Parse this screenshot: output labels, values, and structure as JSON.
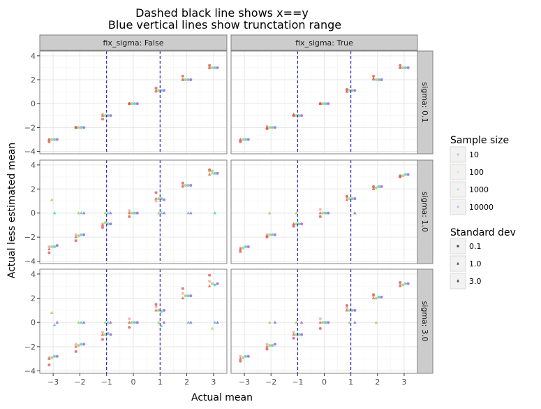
{
  "chart_data": {
    "type": "scatter",
    "title_lines": [
      "Dashed black line shows x==y",
      "Blue vertical lines show trunctation range"
    ],
    "xlabel": "Actual mean",
    "ylabel": "Actual less estimated mean",
    "xlim": [
      -3.5,
      3.5
    ],
    "ylim": [
      -4.2,
      4.4
    ],
    "x_ticks": [
      -3,
      -2,
      -1,
      0,
      1,
      2,
      3
    ],
    "x_tick_labels": [
      "−3",
      "−2",
      "−1",
      "0",
      "1",
      "2",
      "3"
    ],
    "y_ticks": [
      -4,
      -2,
      0,
      2,
      4
    ],
    "y_tick_labels": [
      "−4",
      "−2",
      "0",
      "2",
      "4"
    ],
    "grid": true,
    "truncation_lines": {
      "x": [
        -1,
        1
      ],
      "color": "#0000cc",
      "style": "dashed"
    },
    "facet_cols": [
      "fix_sigma: False",
      "fix_sigma: True"
    ],
    "facet_rows": [
      "sigma: 0.1",
      "sigma: 1.0",
      "sigma: 3.0"
    ],
    "actual_means": [
      -3,
      -2,
      -1,
      0,
      1,
      2,
      3
    ],
    "sample_sizes": [
      "10",
      "100",
      "1000",
      "10000"
    ],
    "sample_size_colors": [
      "#e24b4b",
      "#8bd44a",
      "#36c9c9",
      "#9a4fd4"
    ],
    "sample_offsets": [
      -0.15,
      -0.05,
      0.05,
      0.15
    ],
    "facets": [
      {
        "row": 0,
        "col": 0,
        "points": [
          [
            [
              -3.2,
              -3.0,
              -3.0
            ],
            [
              -2.0,
              -2.0,
              -2.0
            ],
            [
              -1.3,
              -1.0,
              -0.9
            ],
            [
              0.0,
              0.0,
              0.0
            ],
            [
              1.3,
              1.1,
              1.0
            ],
            [
              2.3,
              2.0,
              2.0
            ],
            [
              3.2,
              3.0,
              3.0
            ]
          ],
          [
            [
              -3.0
            ],
            [
              -2.0
            ],
            [
              -1.0
            ],
            [
              0.0
            ],
            [
              1.1
            ],
            [
              2.0
            ],
            [
              3.0
            ]
          ],
          [
            [
              -3.0
            ],
            [
              -2.0
            ],
            [
              -1.0
            ],
            [
              0.0
            ],
            [
              1.1
            ],
            [
              2.0
            ],
            [
              3.0
            ]
          ],
          [
            [
              -3.0
            ],
            [
              -2.0
            ],
            [
              -1.0
            ],
            [
              0.0
            ],
            [
              1.1
            ],
            [
              2.0
            ],
            [
              3.0
            ]
          ]
        ]
      },
      {
        "row": 0,
        "col": 1,
        "points": [
          [
            [
              -3.2,
              -3.0,
              -3.1
            ],
            [
              -2.1,
              -2.0,
              -1.9
            ],
            [
              -1.0,
              -0.9,
              -1.0
            ],
            [
              0.0,
              0.0,
              0.0
            ],
            [
              1.2,
              1.0,
              1.1
            ],
            [
              2.3,
              2.1,
              2.0
            ],
            [
              3.2,
              3.0,
              3.0
            ]
          ],
          [
            [
              -3.0
            ],
            [
              -2.0
            ],
            [
              -1.0
            ],
            [
              0.0
            ],
            [
              1.1
            ],
            [
              2.0
            ],
            [
              3.0
            ]
          ],
          [
            [
              -3.0
            ],
            [
              -2.0
            ],
            [
              -1.0
            ],
            [
              0.0
            ],
            [
              1.1
            ],
            [
              2.0
            ],
            [
              3.0
            ]
          ],
          [
            [
              -3.0
            ],
            [
              -2.0
            ],
            [
              -1.0
            ],
            [
              0.0
            ],
            [
              1.1
            ],
            [
              2.0
            ],
            [
              3.0
            ]
          ]
        ]
      },
      {
        "row": 1,
        "col": 0,
        "points": [
          [
            [
              -3.3,
              -3.0,
              -2.8
            ],
            [
              -2.3,
              -2.0,
              -1.8
            ],
            [
              -1.2,
              -1.0,
              -0.9
            ],
            [
              -0.3,
              0.0,
              0.2
            ],
            [
              1.7,
              1.2,
              1.0
            ],
            [
              2.5,
              2.2,
              2.3
            ],
            [
              3.6,
              3.2,
              3.5
            ]
          ],
          [
            [
              -2.8,
              1.1
            ],
            [
              -1.9,
              0.0
            ],
            [
              -0.8,
              0.0
            ],
            [
              0.0
            ],
            [
              1.2,
              0.0
            ],
            [
              2.3
            ],
            [
              3.5,
              3.3
            ]
          ],
          [
            [
              -2.8,
              0.0
            ],
            [
              -1.8,
              0.0
            ],
            [
              -0.9,
              0.0
            ],
            [
              0.0
            ],
            [
              1.2,
              0.0
            ],
            [
              2.3,
              0.0
            ],
            [
              3.3,
              0.0
            ]
          ],
          [
            [
              -2.7
            ],
            [
              -1.8,
              0.0
            ],
            [
              -0.9,
              0.0
            ],
            [
              0.0
            ],
            [
              1.1,
              0.0
            ],
            [
              2.3,
              0.0
            ],
            [
              3.3
            ]
          ]
        ]
      },
      {
        "row": 1,
        "col": 1,
        "points": [
          [
            [
              -3.2,
              -3.0,
              -2.9
            ],
            [
              -2.0,
              -1.9,
              -1.8
            ],
            [
              -1.1,
              -0.9,
              -1.0
            ],
            [
              -0.3,
              0.0,
              0.3
            ],
            [
              1.4,
              1.1,
              1.3
            ],
            [
              2.2,
              2.0,
              2.1
            ],
            [
              3.1,
              3.0,
              3.0
            ]
          ],
          [
            [
              -2.9
            ],
            [
              -1.8,
              0.0
            ],
            [
              -0.9,
              0.0
            ],
            [
              0.0
            ],
            [
              1.2
            ],
            [
              2.1
            ],
            [
              3.1
            ]
          ],
          [
            [
              -2.8
            ],
            [
              -1.8
            ],
            [
              -0.9
            ],
            [
              0.0
            ],
            [
              1.2
            ],
            [
              2.2
            ],
            [
              3.2
            ]
          ],
          [
            [
              -2.8
            ],
            [
              -1.8
            ],
            [
              -0.9
            ],
            [
              0.0
            ],
            [
              1.2,
              0.0
            ],
            [
              2.2
            ],
            [
              3.2
            ]
          ]
        ]
      },
      {
        "row": 2,
        "col": 0,
        "points": [
          [
            [
              -3.5,
              -3.0,
              -2.9
            ],
            [
              -2.4,
              -2.0,
              -1.8
            ],
            [
              -1.4,
              -1.0,
              -0.8
            ],
            [
              -0.4,
              0.0,
              0.3
            ],
            [
              1.5,
              1.0,
              1.3
            ],
            [
              2.8,
              2.0,
              2.4
            ],
            [
              3.9,
              3.0,
              3.4
            ]
          ],
          [
            [
              -2.9,
              0.8
            ],
            [
              -1.9,
              0.0
            ],
            [
              -1.0,
              0.0
            ],
            [
              0.0
            ],
            [
              1.0,
              0.0
            ],
            [
              2.2
            ],
            [
              3.2,
              -0.5
            ]
          ],
          [
            [
              -2.8,
              -0.2
            ],
            [
              -1.8,
              0.0
            ],
            [
              -0.9,
              0.0
            ],
            [
              0.0
            ],
            [
              0.9,
              -0.3
            ],
            [
              2.2,
              0.0
            ],
            [
              3.1,
              0.0
            ]
          ],
          [
            [
              -2.8,
              0.0
            ],
            [
              -1.8,
              0.0
            ],
            [
              -1.0,
              0.0
            ],
            [
              0.0
            ],
            [
              1.0,
              0.0
            ],
            [
              2.2,
              0.0
            ],
            [
              3.2,
              0.0
            ]
          ]
        ]
      },
      {
        "row": 2,
        "col": 1,
        "points": [
          [
            [
              -3.2,
              -3.0,
              -2.8
            ],
            [
              -2.2,
              -2.0,
              -1.8
            ],
            [
              -1.3,
              -1.0,
              -0.8
            ],
            [
              -0.5,
              0.0,
              0.3
            ],
            [
              1.4,
              1.0,
              1.2
            ],
            [
              2.3,
              2.0,
              2.2
            ],
            [
              3.3,
              3.0,
              3.1
            ]
          ],
          [
            [
              -2.9
            ],
            [
              -1.9,
              0.0
            ],
            [
              -1.0,
              0.0
            ],
            [
              0.0
            ],
            [
              1.0,
              0.0
            ],
            [
              2.0,
              0.0
            ],
            [
              3.1
            ]
          ],
          [
            [
              -2.8
            ],
            [
              -1.9
            ],
            [
              -1.0
            ],
            [
              0.0
            ],
            [
              1.0
            ],
            [
              2.1
            ],
            [
              3.2
            ]
          ],
          [
            [
              -2.8
            ],
            [
              -1.8,
              0.0
            ],
            [
              -1.0,
              0.0
            ],
            [
              0.0
            ],
            [
              1.0,
              0.0
            ],
            [
              2.1
            ],
            [
              3.2
            ]
          ]
        ]
      }
    ],
    "legend": {
      "sample_size_title": "Sample size",
      "sample_size_labels": [
        "10",
        "100",
        "1000",
        "10000"
      ],
      "std_dev_title": "Standard dev",
      "std_dev_labels": [
        "0.1",
        "1.0",
        "3.0"
      ]
    },
    "colors": {
      "panel_border": "#808080",
      "strip_fill": "#cccccc",
      "grid_major": "#e6e6e6",
      "grid_minor": "#f2f2f2",
      "truncation": "#0000cc",
      "legend_swatch": "#f2f2f2"
    }
  }
}
